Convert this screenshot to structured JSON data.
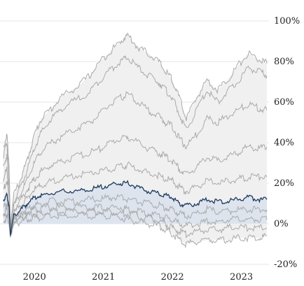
{
  "chart_data": {
    "type": "line",
    "title": "",
    "xlabel": "",
    "ylabel": "",
    "x_unit": "year",
    "xlim": [
      2019.5,
      2023.4
    ],
    "ylim": [
      -20,
      100
    ],
    "y_ticks": [
      {
        "value": 100,
        "label": "100%"
      },
      {
        "value": 80,
        "label": "80%"
      },
      {
        "value": 60,
        "label": "60%"
      },
      {
        "value": 40,
        "label": "40%"
      },
      {
        "value": 20,
        "label": "20%"
      },
      {
        "value": 0,
        "label": "0%"
      },
      {
        "value": -20,
        "label": "-20%"
      }
    ],
    "x_ticks": [
      {
        "value": 2020,
        "label": "2020"
      },
      {
        "value": 2021,
        "label": "2021"
      },
      {
        "value": 2022,
        "label": "2022"
      },
      {
        "value": 2023,
        "label": "2023"
      }
    ],
    "y_axis_position": "right",
    "grid": false,
    "legend": "none",
    "highlight_color": "#1f3a5f",
    "highlight_fill": "#dde4ee",
    "band_fill": "#f0f0f0",
    "series_color": "#aaaaaa",
    "x": [
      2019.55,
      2019.6,
      2019.63,
      2019.65,
      2019.7,
      2019.8,
      2019.9,
      2020.0,
      2020.1,
      2020.25,
      2020.4,
      2020.6,
      2020.8,
      2020.95,
      2021.1,
      2021.25,
      2021.35,
      2021.5,
      2021.65,
      2021.8,
      2021.9,
      2022.0,
      2022.1,
      2022.2,
      2022.35,
      2022.5,
      2022.65,
      2022.8,
      2022.95,
      2023.1,
      2023.25,
      2023.37
    ],
    "series": [
      {
        "highlight": false,
        "values": [
          38,
          44,
          30,
          0,
          14,
          22,
          32,
          44,
          52,
          57,
          63,
          67,
          73,
          80,
          85,
          90,
          93,
          87,
          84,
          80,
          75,
          71,
          62,
          52,
          62,
          71,
          66,
          71,
          78,
          84,
          81,
          79
        ]
      },
      {
        "highlight": false,
        "values": [
          34,
          40,
          26,
          -1,
          11,
          18,
          27,
          37,
          45,
          52,
          57,
          61,
          65,
          71,
          76,
          80,
          82,
          77,
          73,
          70,
          66,
          62,
          54,
          46,
          56,
          66,
          60,
          65,
          70,
          77,
          75,
          73
        ]
      },
      {
        "highlight": false,
        "values": [
          28,
          34,
          21,
          -2,
          9,
          15,
          22,
          30,
          36,
          40,
          43,
          47,
          50,
          54,
          59,
          62,
          64,
          60,
          56,
          53,
          50,
          48,
          42,
          38,
          44,
          52,
          50,
          53,
          56,
          59,
          57,
          56
        ]
      },
      {
        "highlight": false,
        "values": [
          22,
          27,
          17,
          -3,
          7,
          12,
          17,
          22,
          26,
          29,
          31,
          33,
          35,
          37,
          40,
          42,
          43,
          40,
          37,
          35,
          33,
          31,
          27,
          24,
          28,
          33,
          31,
          33,
          35,
          38,
          37,
          38
        ]
      },
      {
        "highlight": false,
        "values": [
          17,
          21,
          13,
          -4,
          5,
          9,
          13,
          17,
          19,
          21,
          22,
          24,
          25,
          26,
          27,
          28,
          29,
          27,
          25,
          24,
          22,
          21,
          18,
          16,
          18,
          21,
          20,
          21,
          22,
          23,
          23,
          23
        ]
      },
      {
        "highlight": true,
        "values": [
          12,
          14,
          9,
          -5,
          4,
          7,
          10,
          13,
          14,
          15,
          16,
          16,
          17,
          18,
          19,
          20,
          20,
          18,
          16,
          15,
          14,
          13,
          10,
          9,
          10,
          12,
          11,
          11,
          12,
          13,
          12,
          12
        ]
      },
      {
        "highlight": false,
        "values": [
          8,
          10,
          6,
          -5,
          3,
          5,
          7,
          9,
          10,
          11,
          11,
          11,
          12,
          12,
          13,
          13,
          12,
          11,
          10,
          9,
          8,
          7,
          5,
          4,
          5,
          7,
          6,
          6,
          7,
          7,
          7,
          7
        ]
      },
      {
        "highlight": false,
        "values": [
          5,
          7,
          4,
          -6,
          2,
          4,
          6,
          7,
          8,
          8,
          8,
          8,
          8,
          8,
          8,
          8,
          7,
          6,
          5,
          4,
          3,
          2,
          0,
          -1,
          0,
          1,
          1,
          2,
          2,
          2,
          2,
          2
        ]
      },
      {
        "highlight": false,
        "values": [
          3,
          5,
          2,
          -6,
          1,
          3,
          4,
          5,
          5,
          6,
          6,
          6,
          6,
          6,
          6,
          5,
          5,
          4,
          3,
          2,
          0,
          -2,
          -4,
          -5,
          -4,
          -3,
          -3,
          -2,
          -2,
          -2,
          -2,
          -2
        ]
      },
      {
        "highlight": false,
        "values": [
          1,
          3,
          1,
          -6,
          0,
          1,
          2,
          3,
          3,
          4,
          4,
          4,
          4,
          4,
          4,
          3,
          2,
          1,
          0,
          -1,
          -3,
          -5,
          -8,
          -10,
          -9,
          -8,
          -8,
          -8,
          -7,
          -7,
          -7,
          -6
        ]
      }
    ]
  }
}
